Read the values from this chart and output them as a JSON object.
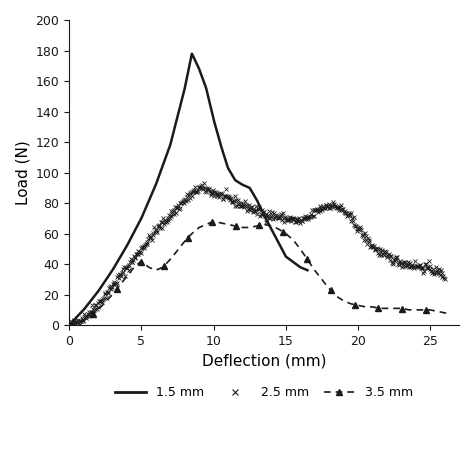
{
  "title": "",
  "xlabel": "Deflection (mm)",
  "ylabel": "Load (N)",
  "xlim": [
    0,
    27
  ],
  "ylim": [
    0,
    200
  ],
  "xticks": [
    0,
    5,
    10,
    15,
    20,
    25
  ],
  "yticks": [
    0,
    20,
    40,
    60,
    80,
    100,
    120,
    140,
    160,
    180,
    200
  ],
  "background_color": "#ffffff",
  "line_color": "#1a1a1a",
  "curve1_color": "#1a1a1a",
  "curve2_color": "#1a1a1a",
  "curve3_color": "#1a1a1a",
  "curve1_lw": 1.8,
  "curve3_lw": 1.2,
  "marker2_size": 3.5,
  "marker3_size": 5
}
